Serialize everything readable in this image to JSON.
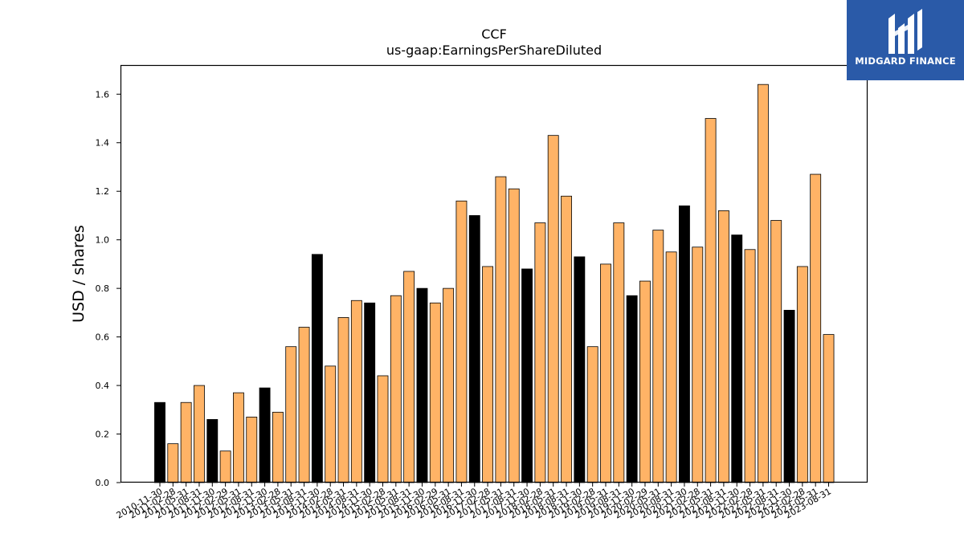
{
  "logo": {
    "text": "MIDGARD FINANCE"
  },
  "chart_data": {
    "type": "bar",
    "title": "CCF",
    "subtitle": "us-gaap:EarningsPerShareDiluted",
    "xlabel": "",
    "ylabel": "USD / shares",
    "ylim": [
      0,
      1.72
    ],
    "yticks": [
      0.0,
      0.2,
      0.4,
      0.6,
      0.8,
      1.0,
      1.2,
      1.4,
      1.6
    ],
    "grid": false,
    "colors": {
      "annual": "#000000",
      "quarterly": "#ffb366",
      "edge": "#000000"
    },
    "categories": [
      "2010-11-30",
      "2011-02-28",
      "2011-05-31",
      "2011-08-31",
      "2011-11-30",
      "2012-02-29",
      "2012-05-31",
      "2012-08-31",
      "2012-11-30",
      "2013-02-28",
      "2013-05-31",
      "2013-08-31",
      "2013-11-30",
      "2014-02-28",
      "2014-05-31",
      "2014-08-31",
      "2014-11-30",
      "2015-02-28",
      "2015-05-31",
      "2015-08-31",
      "2015-11-30",
      "2016-02-29",
      "2016-05-31",
      "2016-08-31",
      "2016-11-30",
      "2017-02-28",
      "2017-05-31",
      "2017-08-31",
      "2017-11-30",
      "2018-02-28",
      "2018-05-31",
      "2018-08-31",
      "2018-11-30",
      "2019-02-28",
      "2019-05-31",
      "2019-08-31",
      "2019-11-30",
      "2020-02-29",
      "2020-05-31",
      "2020-08-31",
      "2020-11-30",
      "2021-02-28",
      "2021-05-31",
      "2021-08-31",
      "2021-11-30",
      "2022-02-28",
      "2022-05-31",
      "2022-08-31",
      "2022-11-30",
      "2023-02-28",
      "2023-05-31",
      "2023-08-31"
    ],
    "values": [
      0.33,
      0.16,
      0.33,
      0.4,
      0.26,
      0.13,
      0.37,
      0.27,
      0.39,
      0.29,
      0.56,
      0.64,
      0.94,
      0.48,
      0.68,
      0.75,
      0.74,
      0.44,
      0.77,
      0.87,
      0.8,
      0.74,
      0.8,
      1.16,
      1.1,
      0.89,
      1.26,
      1.21,
      0.88,
      1.07,
      1.43,
      1.18,
      0.93,
      0.56,
      0.9,
      1.07,
      0.77,
      0.83,
      1.04,
      0.95,
      1.14,
      0.97,
      1.5,
      1.12,
      1.02,
      0.96,
      1.64,
      1.08,
      0.71,
      0.89,
      1.27,
      0.61
    ],
    "annual": [
      true,
      false,
      false,
      false,
      true,
      false,
      false,
      false,
      true,
      false,
      false,
      false,
      true,
      false,
      false,
      false,
      true,
      false,
      false,
      false,
      true,
      false,
      false,
      false,
      true,
      false,
      false,
      false,
      true,
      false,
      false,
      false,
      true,
      false,
      false,
      false,
      true,
      false,
      false,
      false,
      true,
      false,
      false,
      false,
      true,
      false,
      false,
      false,
      true,
      false,
      false,
      false
    ]
  }
}
